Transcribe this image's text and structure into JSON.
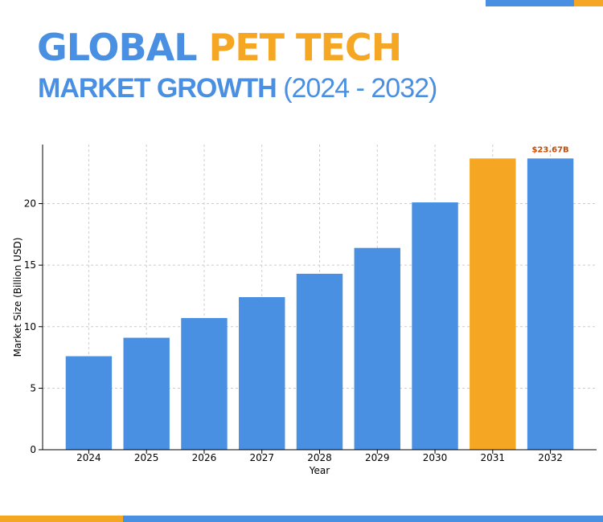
{
  "header": {
    "title_part1": "GLOBAL",
    "title_part2": "PET TECH",
    "subtitle_bold": "MARKET GROWTH",
    "subtitle_light": "(2024 - 2032)"
  },
  "colors": {
    "blue": "#4a90e2",
    "orange": "#f5a623",
    "label_orange": "#c84a00"
  },
  "chart_data": {
    "type": "bar",
    "categories": [
      "2024",
      "2025",
      "2026",
      "2027",
      "2028",
      "2029",
      "2030",
      "2031",
      "2032"
    ],
    "values": [
      7.6,
      9.1,
      10.7,
      12.4,
      14.3,
      16.4,
      20.1,
      23.67,
      23.67
    ],
    "highlight_category": "2031",
    "data_label": {
      "category": "2032",
      "text": "$23.67B"
    },
    "xlabel": "Year",
    "ylabel": "Market Size (Billion USD)",
    "ylim": [
      0,
      24.8
    ],
    "yticks": [
      0,
      5,
      10,
      15,
      20
    ],
    "grid": true
  }
}
